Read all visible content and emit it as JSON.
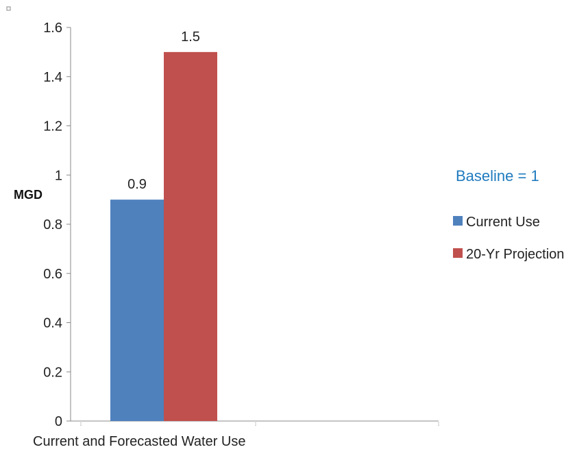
{
  "chart_data": {
    "type": "bar",
    "categories": [
      ""
    ],
    "series": [
      {
        "name": "Current Use",
        "values": [
          0.9
        ],
        "color": "#4f81bd"
      },
      {
        "name": "20-Yr Projection",
        "values": [
          1.5
        ],
        "color": "#c0504d"
      }
    ],
    "data_labels": [
      "0.9",
      "1.5"
    ],
    "y_ticks": [
      "0",
      "0.2",
      "0.4",
      "0.6",
      "0.8",
      "1",
      "1.2",
      "1.4",
      "1.6"
    ],
    "ylim": [
      0,
      1.6
    ],
    "ylabel": "MGD",
    "xlabel": "Current and Forecasted Water Use",
    "annotation": {
      "text": "Baseline = 1",
      "color": "#1f7bbf"
    },
    "legend_position": "right",
    "grid": false
  }
}
